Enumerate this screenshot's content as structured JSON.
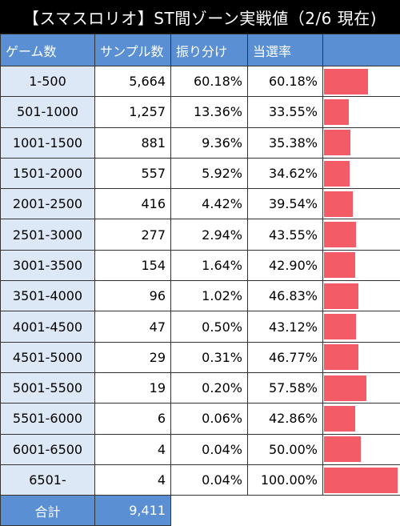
{
  "title": "【スマスロリオ】ST間ゾーン実戦値（2/6 現在)",
  "headers": {
    "games": "ゲーム数",
    "samples": "サンプル数",
    "distribution": "振り分け",
    "win_rate": "当選率",
    "bar": ""
  },
  "colors": {
    "header": "#5b8fd3",
    "range_cell": "#dce8f6",
    "bar": "#f35b66",
    "title_bg": "#000000"
  },
  "chart_data": {
    "type": "table",
    "columns": [
      "ゲーム数",
      "サンプル数",
      "振り分け",
      "当選率"
    ],
    "rows": [
      {
        "range": "1-500",
        "samples": "5,664",
        "distribution": "60.18%",
        "win_rate": "60.18%",
        "win_rate_value": 60.18
      },
      {
        "range": "501-1000",
        "samples": "1,257",
        "distribution": "13.36%",
        "win_rate": "33.55%",
        "win_rate_value": 33.55
      },
      {
        "range": "1001-1500",
        "samples": "881",
        "distribution": "9.36%",
        "win_rate": "35.38%",
        "win_rate_value": 35.38
      },
      {
        "range": "1501-2000",
        "samples": "557",
        "distribution": "5.92%",
        "win_rate": "34.62%",
        "win_rate_value": 34.62
      },
      {
        "range": "2001-2500",
        "samples": "416",
        "distribution": "4.42%",
        "win_rate": "39.54%",
        "win_rate_value": 39.54
      },
      {
        "range": "2501-3000",
        "samples": "277",
        "distribution": "2.94%",
        "win_rate": "43.55%",
        "win_rate_value": 43.55
      },
      {
        "range": "3001-3500",
        "samples": "154",
        "distribution": "1.64%",
        "win_rate": "42.90%",
        "win_rate_value": 42.9
      },
      {
        "range": "3501-4000",
        "samples": "96",
        "distribution": "1.02%",
        "win_rate": "46.83%",
        "win_rate_value": 46.83
      },
      {
        "range": "4001-4500",
        "samples": "47",
        "distribution": "0.50%",
        "win_rate": "43.12%",
        "win_rate_value": 43.12
      },
      {
        "range": "4501-5000",
        "samples": "29",
        "distribution": "0.31%",
        "win_rate": "46.77%",
        "win_rate_value": 46.77
      },
      {
        "range": "5001-5500",
        "samples": "19",
        "distribution": "0.20%",
        "win_rate": "57.58%",
        "win_rate_value": 57.58
      },
      {
        "range": "5501-6000",
        "samples": "6",
        "distribution": "0.06%",
        "win_rate": "42.86%",
        "win_rate_value": 42.86
      },
      {
        "range": "6001-6500",
        "samples": "4",
        "distribution": "0.04%",
        "win_rate": "50.00%",
        "win_rate_value": 50.0
      },
      {
        "range": "6501-",
        "samples": "4",
        "distribution": "0.04%",
        "win_rate": "100.00%",
        "win_rate_value": 100.0
      }
    ],
    "bar_max": 100
  },
  "total": {
    "label": "合計",
    "samples": "9,411"
  }
}
